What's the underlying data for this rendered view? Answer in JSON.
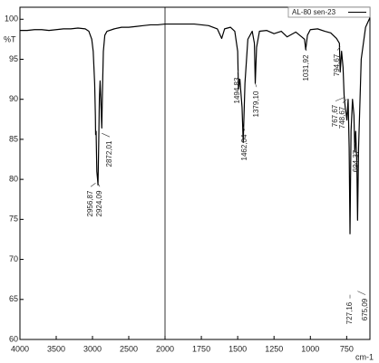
{
  "chart_data": {
    "type": "line",
    "xlabel": "cm-1",
    "ylabel": "%T",
    "xlim": [
      4000,
      590
    ],
    "xscale_break": 2000,
    "ylim": [
      60,
      101.5
    ],
    "xticks": [
      4000,
      3500,
      3000,
      2500,
      2000,
      1750,
      1500,
      1250,
      1000,
      750
    ],
    "yticks": [
      60,
      65,
      70,
      75,
      80,
      85,
      90,
      95,
      100
    ],
    "legend": "upper right",
    "series": [
      {
        "name": "AL-80 sen-23",
        "color": "#000000",
        "x": [
          4000,
          3900,
          3800,
          3700,
          3600,
          3500,
          3400,
          3300,
          3200,
          3100,
          3050,
          3010,
          2990,
          2970,
          2960,
          2956.87,
          2950,
          2940,
          2930,
          2924.09,
          2915,
          2905,
          2895,
          2885,
          2872.01,
          2860,
          2850,
          2830,
          2800,
          2700,
          2600,
          2500,
          2400,
          2300,
          2200,
          2100,
          2000,
          1900,
          1800,
          1700,
          1640,
          1610,
          1590,
          1550,
          1520,
          1500,
          1494.83,
          1485,
          1470,
          1462.04,
          1450,
          1430,
          1400,
          1385,
          1379.1,
          1370,
          1350,
          1300,
          1250,
          1200,
          1160,
          1100,
          1060,
          1040,
          1031.92,
          1020,
          1000,
          950,
          900,
          860,
          820,
          800,
          794.67,
          785,
          775,
          767.67,
          760,
          752,
          748.67,
          740,
          733,
          727.16,
          720,
          710,
          700,
          694.37,
          688,
          680,
          675.09,
          668,
          650,
          620,
          600,
          590
        ],
        "values": [
          98.6,
          98.6,
          98.7,
          98.7,
          98.6,
          98.7,
          98.8,
          98.8,
          98.9,
          98.8,
          98.5,
          97.5,
          96,
          92,
          88,
          85.6,
          86,
          81,
          80,
          79.3,
          84,
          90,
          92.3,
          90,
          86.4,
          92,
          96,
          98,
          98.5,
          98.8,
          99,
          99,
          99.1,
          99.2,
          99.3,
          99.3,
          99.4,
          99.4,
          99.4,
          99.2,
          98.8,
          97.6,
          98.8,
          99,
          98.5,
          96,
          91.3,
          92.5,
          89,
          84.6,
          92,
          97.5,
          98.5,
          97,
          92,
          96.5,
          98.5,
          98.6,
          98.2,
          98.5,
          97.8,
          98.4,
          97.8,
          97.5,
          96.2,
          98,
          98.7,
          98.8,
          98.5,
          98.3,
          97.6,
          97,
          93.4,
          96,
          94,
          90.5,
          89,
          88,
          87.4,
          90,
          84,
          73.2,
          86,
          90,
          88,
          83.4,
          86,
          82,
          74.9,
          84,
          95,
          99,
          99.8,
          100.2
        ]
      }
    ],
    "annotations": [
      {
        "label": "2956,87",
        "x": 2956.87
      },
      {
        "label": "2924,09",
        "x": 2924.09
      },
      {
        "label": "2872,01",
        "x": 2872.01
      },
      {
        "label": "1494,83",
        "x": 1494.83
      },
      {
        "label": "1462,04",
        "x": 1462.04
      },
      {
        "label": "1379,10",
        "x": 1379.1
      },
      {
        "label": "1031,92",
        "x": 1031.92
      },
      {
        "label": "794,67",
        "x": 794.67
      },
      {
        "label": "767,67",
        "x": 767.67
      },
      {
        "label": "748,67",
        "x": 748.67
      },
      {
        "label": "727,16",
        "x": 727.16
      },
      {
        "label": "694,37",
        "x": 694.37
      },
      {
        "label": "675,09",
        "x": 675.09
      }
    ]
  }
}
